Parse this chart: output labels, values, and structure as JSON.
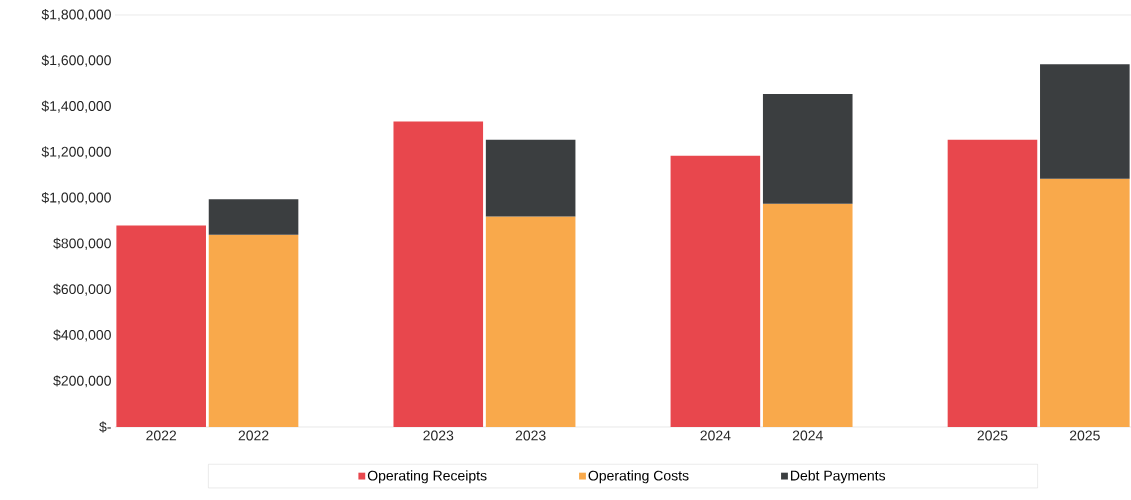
{
  "chart_data": {
    "type": "bar",
    "stacked": true,
    "legend": "bottom",
    "categories": [
      "2022",
      "2022",
      null,
      "2023",
      "2023",
      null,
      "2024",
      "2024",
      null,
      "2025",
      "2025"
    ],
    "series": [
      {
        "name": "Operating Receipts",
        "color": "#e8474d",
        "values": [
          880000,
          null,
          null,
          1335000,
          null,
          null,
          1185000,
          null,
          null,
          1255000,
          null
        ]
      },
      {
        "name": "Operating Costs",
        "color": "#f9a94b",
        "values": [
          null,
          840000,
          null,
          null,
          920000,
          null,
          null,
          975000,
          null,
          null,
          1085000
        ]
      },
      {
        "name": "Debt Payments",
        "color": "#3b3e40",
        "values": [
          null,
          155000,
          null,
          null,
          335000,
          null,
          null,
          480000,
          null,
          null,
          500000
        ]
      }
    ],
    "ylim": [
      0,
      1800000
    ],
    "yticks": [
      {
        "value": 0,
        "label": "$-"
      },
      {
        "value": 200000,
        "label": "$200,000"
      },
      {
        "value": 400000,
        "label": "$400,000"
      },
      {
        "value": 600000,
        "label": "$600,000"
      },
      {
        "value": 800000,
        "label": "$800,000"
      },
      {
        "value": 1000000,
        "label": "$1,000,000"
      },
      {
        "value": 1200000,
        "label": "$1,200,000"
      },
      {
        "value": 1400000,
        "label": "$1,400,000"
      },
      {
        "value": 1600000,
        "label": "$1,600,000"
      },
      {
        "value": 1800000,
        "label": "$1,800,000"
      }
    ]
  }
}
